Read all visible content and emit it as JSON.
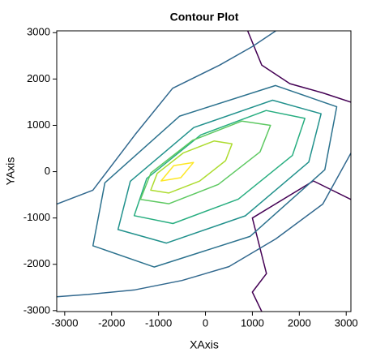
{
  "chart_data": {
    "type": "contour",
    "title": "Contour Plot",
    "x_label": "XAxis",
    "y_label": "YAxis",
    "xlim": [
      -3170,
      3100
    ],
    "ylim": [
      -3020,
      3040
    ],
    "xticks": [
      -3000,
      -2000,
      -1000,
      0,
      1000,
      2000,
      3000
    ],
    "yticks": [
      -3000,
      -2000,
      -1000,
      0,
      1000,
      2000,
      3000
    ],
    "series": [
      {
        "color": "#440154",
        "closed": false,
        "x": [
          900,
          1200,
          1800,
          2500,
          3100
        ],
        "y": [
          3040,
          2300,
          1900,
          1700,
          1500
        ]
      },
      {
        "color": "#440154",
        "closed": false,
        "x": [
          3100,
          2300,
          1000,
          1300,
          1000,
          1200
        ],
        "y": [
          -600,
          -200,
          -1000,
          -2200,
          -2600,
          -3020
        ]
      },
      {
        "color": "#31688e",
        "closed": false,
        "x": [
          -3170,
          -2500,
          -1500,
          -500,
          500,
          1500,
          2500,
          3100
        ],
        "y": [
          -2700,
          -2650,
          -2550,
          -2350,
          -2050,
          -1450,
          -700,
          400
        ]
      },
      {
        "color": "#31688e",
        "closed": false,
        "x": [
          -3170,
          -2400,
          -1500,
          -700,
          300,
          1000,
          1500
        ],
        "y": [
          -700,
          -400,
          800,
          1800,
          2300,
          2700,
          3040
        ]
      },
      {
        "color": "#2c728e",
        "closed": true,
        "x": [
          2798,
          1494,
          -550,
          -2144,
          -2398,
          -1094,
          950,
          2544
        ],
        "y": [
          1400,
          1859,
          1199,
          -241,
          -1600,
          -2059,
          -1399,
          41
        ]
      },
      {
        "color": "#21918c",
        "closed": true,
        "x": [
          2465,
          1431,
          -250,
          -1601,
          -1865,
          -831,
          850,
          2201
        ],
        "y": [
          1250,
          1542,
          953,
          -208,
          -1250,
          -1542,
          -953,
          208
        ]
      },
      {
        "color": "#28ae80",
        "closed": true,
        "x": [
          2119,
          1293,
          -100,
          -1253,
          -1519,
          -693,
          700,
          1853
        ],
        "y": [
          1150,
          1320,
          793,
          -150,
          -950,
          -1120,
          -593,
          350
        ]
      },
      {
        "color": "#5ec962",
        "closed": true,
        "x": [
          1386,
          777,
          -275,
          -1163,
          -1386,
          -777,
          275,
          1163
        ],
        "y": [
          1000,
          1093,
          676,
          -27,
          -600,
          -693,
          -276,
          427
        ]
      },
      {
        "color": "#addc30",
        "closed": true,
        "x": [
          566,
          183,
          -475,
          -1029,
          -1166,
          -783,
          -125,
          429
        ],
        "y": [
          600,
          662,
          403,
          -38,
          -400,
          -462,
          -203,
          238
        ]
      },
      {
        "color": "#fde725",
        "closed": true,
        "x": [
          -254,
          -675,
          -946,
          -525
        ],
        "y": [
          200,
          130,
          -200,
          -130
        ]
      }
    ]
  }
}
